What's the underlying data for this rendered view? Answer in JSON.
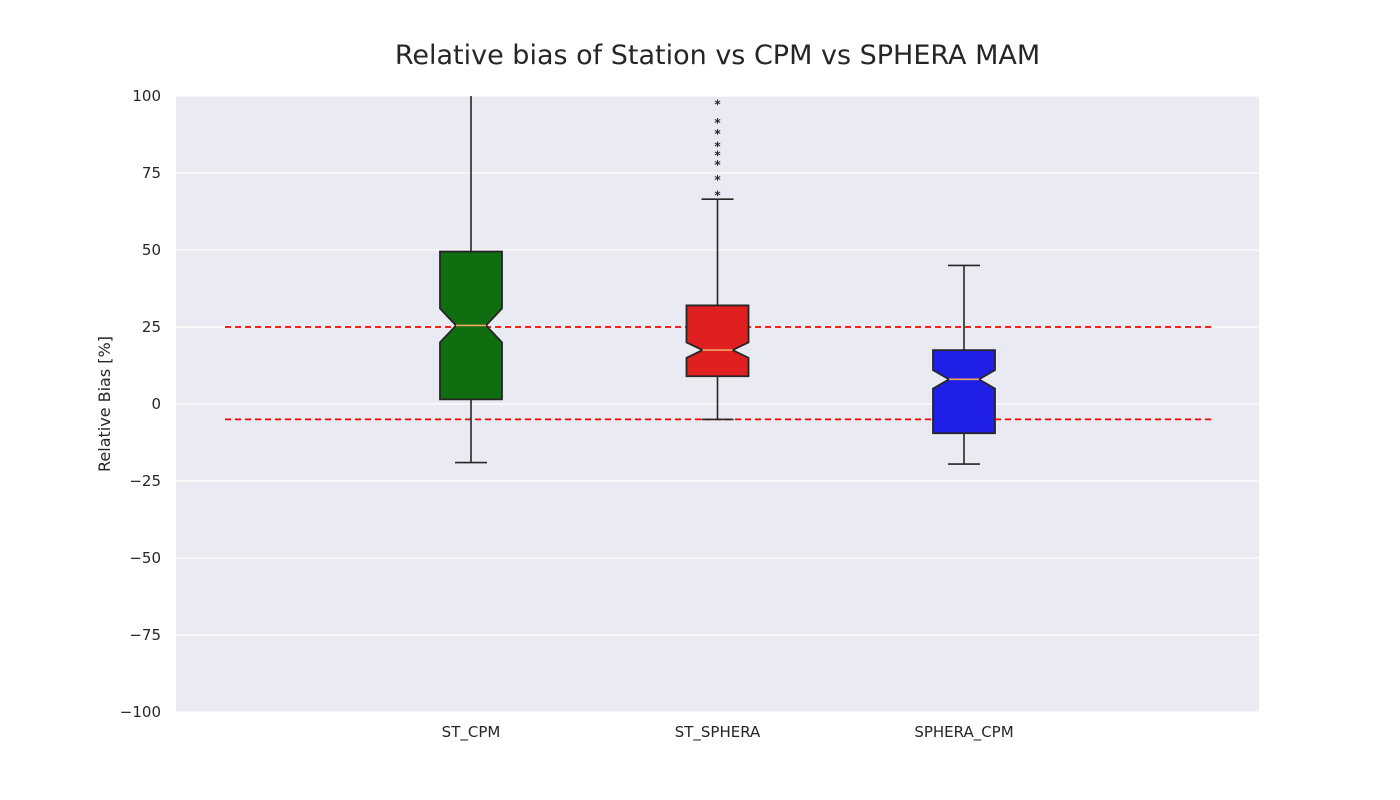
{
  "chart_data": {
    "type": "box",
    "title": "Relative bias of Station vs CPM vs SPHERA MAM",
    "xlabel": "",
    "ylabel": "Relative Bias [%]",
    "ylim": [
      -100,
      100
    ],
    "yticks": [
      -100,
      -75,
      -50,
      -25,
      0,
      25,
      50,
      75,
      100
    ],
    "ytick_labels": [
      "−100",
      "−75",
      "−50",
      "−25",
      "0",
      "25",
      "50",
      "75",
      "100"
    ],
    "categories": [
      "ST_CPM",
      "ST_SPHERA",
      "SPHERA_CPM"
    ],
    "grid": true,
    "notched": true,
    "reference_lines": [
      25,
      -5
    ],
    "reference_line_color": "#ff0000",
    "boxes": [
      {
        "name": "ST_CPM",
        "color": "#0f6e0f",
        "whisker_low": -19,
        "q1": 1.5,
        "median": 25.5,
        "q3": 49.5,
        "whisker_high": 100,
        "notch_low": 20,
        "notch_high": 31,
        "outliers": []
      },
      {
        "name": "ST_SPHERA",
        "color": "#e02020",
        "whisker_low": -5,
        "q1": 9,
        "median": 17.5,
        "q3": 32,
        "whisker_high": 66.5,
        "notch_low": 15,
        "notch_high": 20,
        "outliers": [
          68,
          73,
          78,
          81,
          84,
          88,
          91.5,
          97.5
        ]
      },
      {
        "name": "SPHERA_CPM",
        "color": "#1f1fe5",
        "whisker_low": -19.5,
        "q1": -9.5,
        "median": 8,
        "q3": 17.5,
        "whisker_high": 45,
        "notch_low": 5,
        "notch_high": 11,
        "outliers": []
      }
    ]
  }
}
